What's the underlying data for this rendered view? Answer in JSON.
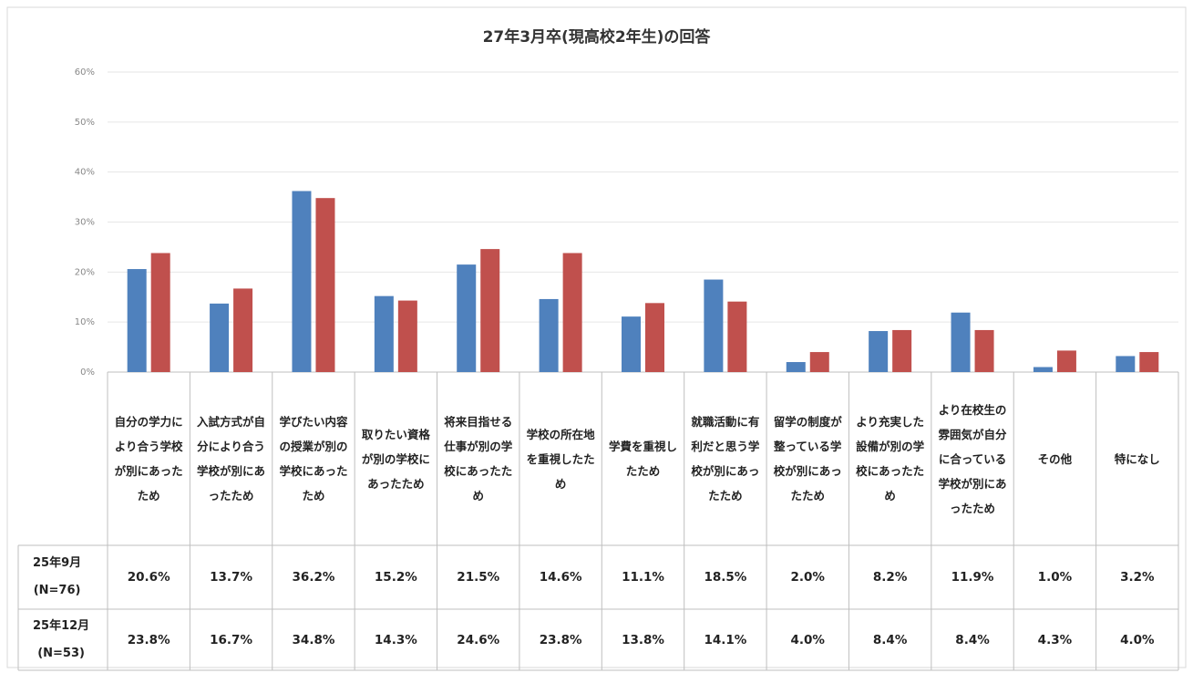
{
  "chart_data": {
    "type": "bar",
    "title": "27年3月卒(現高校2年生)の回答",
    "categories": [
      "自分の学力により合う学校が別にあったため",
      "入試方式が自分により合う学校が別にあったため",
      "学びたい内容の授業が別の学校にあったため",
      "取りたい資格が別の学校にあったため",
      "将来目指せる仕事が別の学校にあったため",
      "学校の所在地を重視したため",
      "学費を重視したため",
      "就職活動に有利だと思う学校が別にあったため",
      "留学の制度が整っている学校が別にあったため",
      "より充実した設備が別の学校にあったため",
      "より在校生の雰囲気が自分に合っている学校が別にあったため",
      "その他",
      "特になし"
    ],
    "series": [
      {
        "name": "25年9月\n(N=76)",
        "color": "#4f81bd",
        "values": [
          20.6,
          13.7,
          36.2,
          15.2,
          21.5,
          14.6,
          11.1,
          18.5,
          2.0,
          8.2,
          11.9,
          1.0,
          3.2
        ],
        "value_labels": [
          "20.6%",
          "13.7%",
          "36.2%",
          "15.2%",
          "21.5%",
          "14.6%",
          "11.1%",
          "18.5%",
          "2.0%",
          "8.2%",
          "11.9%",
          "1.0%",
          "3.2%"
        ]
      },
      {
        "name": "25年12月\n(N=53)",
        "color": "#c0504d",
        "values": [
          23.8,
          16.7,
          34.8,
          14.3,
          24.6,
          23.8,
          13.8,
          14.1,
          4.0,
          8.4,
          8.4,
          4.3,
          4.0
        ],
        "value_labels": [
          "23.8%",
          "16.7%",
          "34.8%",
          "14.3%",
          "24.6%",
          "23.8%",
          "13.8%",
          "14.1%",
          "4.0%",
          "8.4%",
          "8.4%",
          "4.3%",
          "4.0%"
        ]
      }
    ],
    "ylim": [
      0,
      60
    ],
    "yticks": [
      {
        "value": 0,
        "label": "0%"
      },
      {
        "value": 10,
        "label": "10%"
      },
      {
        "value": 20,
        "label": "20%"
      },
      {
        "value": 30,
        "label": "30%"
      },
      {
        "value": 40,
        "label": "40%"
      },
      {
        "value": 50,
        "label": "50%"
      },
      {
        "value": 60,
        "label": "60%"
      }
    ],
    "grid": true
  }
}
